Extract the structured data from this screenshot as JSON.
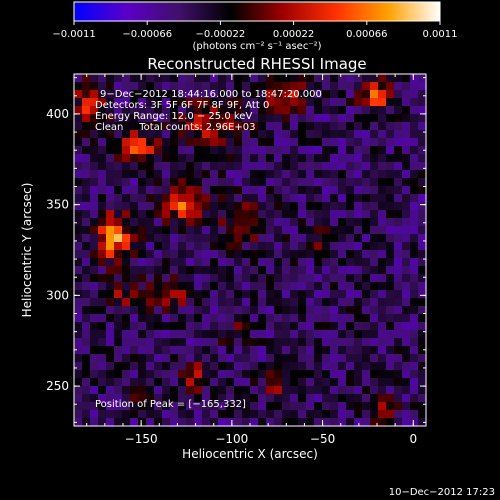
{
  "chart_data": {
    "type": "heatmap",
    "title": "Reconstructed RHESSI Image",
    "xlabel": "Heliocentric X (arcsec)",
    "ylabel": "Heliocentric Y (arcsec)",
    "xlim": [
      -187,
      7
    ],
    "ylim": [
      228,
      422
    ],
    "x_ticks": [
      -150,
      -100,
      -50,
      0
    ],
    "x_tick_labels": [
      "−150",
      "−100",
      "−50",
      "0"
    ],
    "y_ticks": [
      250,
      300,
      350,
      400
    ],
    "y_tick_labels": [
      "250",
      "300",
      "350",
      "400"
    ],
    "colorbar": {
      "min": -0.0011,
      "max": 0.0011,
      "tick_values": [
        -0.0011,
        -0.00066,
        -0.00022,
        0.00022,
        0.00066,
        0.0011
      ],
      "tick_labels": [
        "−0.0011",
        "−0.00066",
        "−0.00022",
        "0.00022",
        "0.00066",
        "0.0011"
      ],
      "unit_label": "(photons cm⁻² s⁻¹ asec⁻²)",
      "colors": [
        "#0000ff",
        "#5a00c8",
        "#40106a",
        "#000000",
        "#a00000",
        "#ff3000",
        "#ffa000",
        "#ffffff"
      ]
    },
    "annotations": [
      "9−Dec−2012 18:44:16.000 to 18:47:20.000",
      "Detectors: 3F 5F 6F 7F 8F 9F, Att 0",
      "Energy Range: 12.0 − 25.0 keV",
      "Clean     Total counts: 2.96E+03"
    ],
    "peak_label": "Position of Peak = [−165,332]",
    "peak": {
      "x": -165,
      "y": 332
    },
    "sources": [
      {
        "x": -165,
        "y": 332,
        "amp": 0.0011,
        "sx": 7,
        "sy": 9
      },
      {
        "x": -126,
        "y": 350,
        "amp": 0.00095,
        "sx": 8,
        "sy": 7
      },
      {
        "x": -152,
        "y": 382,
        "amp": 0.0008,
        "sx": 8,
        "sy": 6
      },
      {
        "x": -178,
        "y": 405,
        "amp": 0.0007,
        "sx": 6,
        "sy": 9
      },
      {
        "x": -93,
        "y": 340,
        "amp": 0.00055,
        "sx": 9,
        "sy": 8
      },
      {
        "x": -110,
        "y": 395,
        "amp": 0.0006,
        "sx": 12,
        "sy": 9
      },
      {
        "x": -70,
        "y": 410,
        "amp": 0.0006,
        "sx": 9,
        "sy": 6
      },
      {
        "x": -20,
        "y": 410,
        "amp": 0.00085,
        "sx": 6,
        "sy": 6
      },
      {
        "x": -135,
        "y": 300,
        "amp": 0.00045,
        "sx": 10,
        "sy": 6
      },
      {
        "x": -160,
        "y": 300,
        "amp": 0.0004,
        "sx": 6,
        "sy": 6
      },
      {
        "x": -120,
        "y": 255,
        "amp": 0.0005,
        "sx": 6,
        "sy": 6
      },
      {
        "x": -75,
        "y": 250,
        "amp": 0.0004,
        "sx": 8,
        "sy": 6
      },
      {
        "x": -18,
        "y": 237,
        "amp": 0.00045,
        "sx": 6,
        "sy": 5
      },
      {
        "x": -150,
        "y": 240,
        "amp": 0.00035,
        "sx": 5,
        "sy": 4
      },
      {
        "x": -52,
        "y": 330,
        "amp": 0.00035,
        "sx": 6,
        "sy": 6
      },
      {
        "x": -100,
        "y": 280,
        "amp": 0.0003,
        "sx": 7,
        "sy": 5
      }
    ],
    "background_level": -0.0004,
    "grid": false
  },
  "footer": {
    "timestamp": "10−Dec−2012 17:23"
  }
}
